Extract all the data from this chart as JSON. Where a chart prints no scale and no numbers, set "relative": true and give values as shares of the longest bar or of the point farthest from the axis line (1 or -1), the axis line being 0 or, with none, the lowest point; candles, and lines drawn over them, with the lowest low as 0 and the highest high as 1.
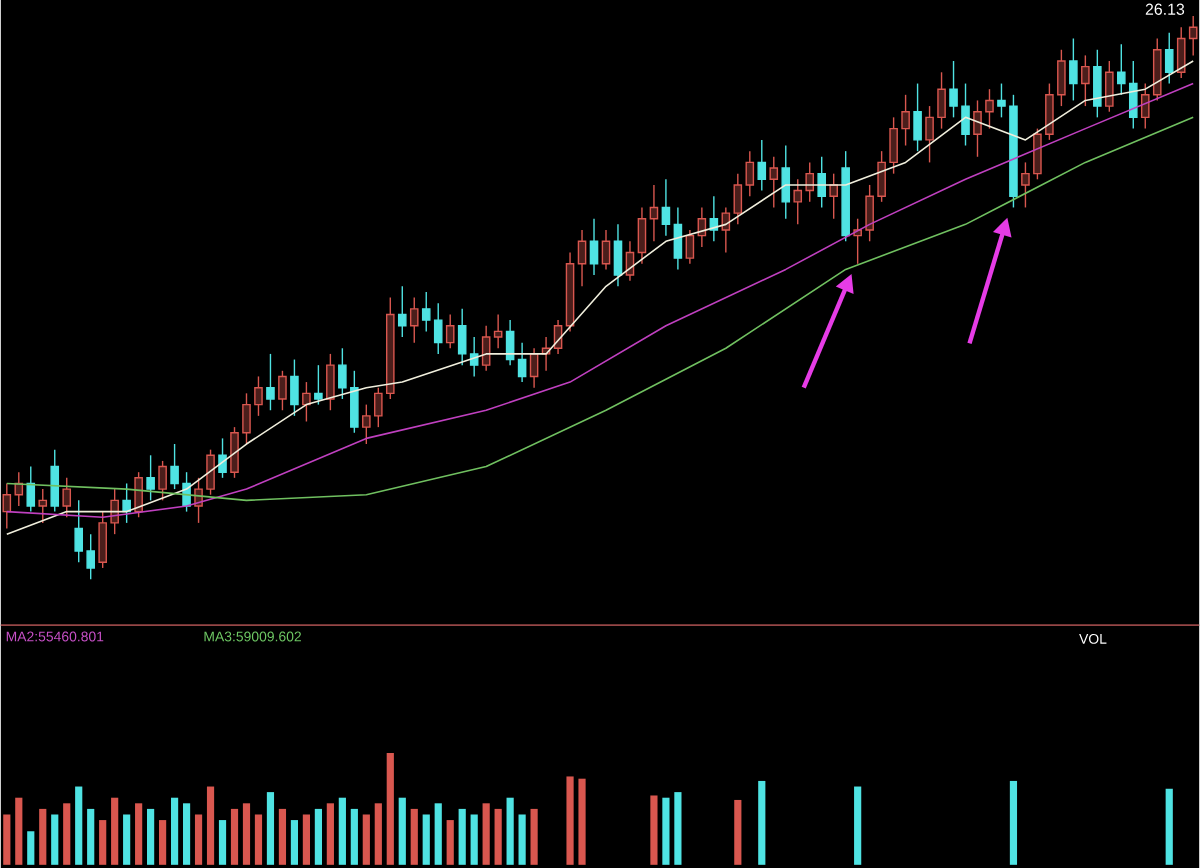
{
  "chart_data": [
    {
      "type": "candlestick",
      "relative": true,
      "categories": [
        null,
        null,
        null,
        null,
        null,
        null,
        null,
        null,
        null,
        null,
        null,
        null,
        null,
        null,
        null,
        null,
        null,
        null,
        null,
        null,
        null,
        null,
        null,
        null,
        null,
        null,
        null,
        null,
        null,
        null,
        null,
        null,
        null,
        null,
        null,
        null,
        null,
        null,
        null,
        null,
        null,
        null,
        null,
        null,
        null,
        null,
        null,
        null,
        null,
        null,
        null,
        null,
        null,
        null,
        null,
        null,
        null,
        null,
        null,
        null,
        null,
        null,
        null,
        null,
        null,
        null,
        null,
        null,
        null,
        null,
        null,
        null,
        null,
        null,
        null,
        null,
        null,
        null,
        null,
        null,
        null,
        null,
        null,
        null,
        null,
        null,
        null,
        null,
        null,
        null,
        null,
        null,
        null,
        null,
        null,
        null,
        null,
        null,
        null,
        null
      ],
      "ohlc": [
        [
          0.12,
          0.17,
          0.09,
          0.15
        ],
        [
          0.15,
          0.19,
          0.13,
          0.17
        ],
        [
          0.17,
          0.2,
          0.12,
          0.13
        ],
        [
          0.13,
          0.16,
          0.1,
          0.14
        ],
        [
          0.2,
          0.23,
          0.12,
          0.13
        ],
        [
          0.13,
          0.18,
          0.11,
          0.16
        ],
        [
          0.09,
          0.14,
          0.03,
          0.05
        ],
        [
          0.05,
          0.08,
          0.0,
          0.02
        ],
        [
          0.03,
          0.12,
          0.02,
          0.1
        ],
        [
          0.1,
          0.16,
          0.08,
          0.14
        ],
        [
          0.14,
          0.17,
          0.1,
          0.12
        ],
        [
          0.12,
          0.19,
          0.11,
          0.18
        ],
        [
          0.18,
          0.22,
          0.14,
          0.16
        ],
        [
          0.16,
          0.21,
          0.14,
          0.2
        ],
        [
          0.2,
          0.24,
          0.16,
          0.17
        ],
        [
          0.17,
          0.19,
          0.12,
          0.13
        ],
        [
          0.13,
          0.18,
          0.1,
          0.16
        ],
        [
          0.16,
          0.23,
          0.15,
          0.22
        ],
        [
          0.22,
          0.25,
          0.18,
          0.19
        ],
        [
          0.19,
          0.27,
          0.18,
          0.26
        ],
        [
          0.26,
          0.33,
          0.24,
          0.31
        ],
        [
          0.31,
          0.36,
          0.29,
          0.34
        ],
        [
          0.34,
          0.4,
          0.3,
          0.32
        ],
        [
          0.32,
          0.37,
          0.3,
          0.36
        ],
        [
          0.36,
          0.39,
          0.29,
          0.31
        ],
        [
          0.31,
          0.35,
          0.28,
          0.33
        ],
        [
          0.33,
          0.38,
          0.31,
          0.32
        ],
        [
          0.32,
          0.4,
          0.3,
          0.38
        ],
        [
          0.38,
          0.41,
          0.32,
          0.34
        ],
        [
          0.34,
          0.37,
          0.26,
          0.27
        ],
        [
          0.27,
          0.31,
          0.24,
          0.29
        ],
        [
          0.29,
          0.34,
          0.27,
          0.33
        ],
        [
          0.33,
          0.5,
          0.32,
          0.47
        ],
        [
          0.47,
          0.52,
          0.43,
          0.45
        ],
        [
          0.45,
          0.5,
          0.42,
          0.48
        ],
        [
          0.48,
          0.51,
          0.44,
          0.46
        ],
        [
          0.46,
          0.49,
          0.4,
          0.42
        ],
        [
          0.42,
          0.47,
          0.41,
          0.45
        ],
        [
          0.45,
          0.48,
          0.38,
          0.4
        ],
        [
          0.4,
          0.43,
          0.36,
          0.38
        ],
        [
          0.38,
          0.45,
          0.37,
          0.43
        ],
        [
          0.43,
          0.47,
          0.41,
          0.44
        ],
        [
          0.44,
          0.46,
          0.38,
          0.39
        ],
        [
          0.39,
          0.42,
          0.35,
          0.36
        ],
        [
          0.36,
          0.41,
          0.34,
          0.4
        ],
        [
          0.4,
          0.43,
          0.37,
          0.41
        ],
        [
          0.41,
          0.46,
          0.4,
          0.45
        ],
        [
          0.45,
          0.58,
          0.44,
          0.56
        ],
        [
          0.56,
          0.62,
          0.52,
          0.6
        ],
        [
          0.6,
          0.64,
          0.54,
          0.56
        ],
        [
          0.56,
          0.62,
          0.55,
          0.6
        ],
        [
          0.6,
          0.63,
          0.52,
          0.54
        ],
        [
          0.54,
          0.6,
          0.53,
          0.58
        ],
        [
          0.58,
          0.66,
          0.56,
          0.64
        ],
        [
          0.64,
          0.7,
          0.6,
          0.66
        ],
        [
          0.66,
          0.71,
          0.61,
          0.63
        ],
        [
          0.63,
          0.66,
          0.55,
          0.57
        ],
        [
          0.57,
          0.62,
          0.56,
          0.61
        ],
        [
          0.61,
          0.66,
          0.59,
          0.64
        ],
        [
          0.64,
          0.68,
          0.6,
          0.62
        ],
        [
          0.62,
          0.66,
          0.58,
          0.65
        ],
        [
          0.65,
          0.72,
          0.63,
          0.7
        ],
        [
          0.7,
          0.76,
          0.68,
          0.74
        ],
        [
          0.74,
          0.78,
          0.69,
          0.71
        ],
        [
          0.71,
          0.75,
          0.66,
          0.73
        ],
        [
          0.73,
          0.77,
          0.64,
          0.67
        ],
        [
          0.67,
          0.71,
          0.63,
          0.69
        ],
        [
          0.69,
          0.74,
          0.67,
          0.72
        ],
        [
          0.72,
          0.75,
          0.66,
          0.68
        ],
        [
          0.68,
          0.72,
          0.64,
          0.7
        ],
        [
          0.73,
          0.76,
          0.6,
          0.61
        ],
        [
          0.61,
          0.64,
          0.56,
          0.62
        ],
        [
          0.62,
          0.7,
          0.6,
          0.68
        ],
        [
          0.68,
          0.76,
          0.67,
          0.74
        ],
        [
          0.74,
          0.82,
          0.72,
          0.8
        ],
        [
          0.8,
          0.86,
          0.77,
          0.83
        ],
        [
          0.83,
          0.88,
          0.76,
          0.78
        ],
        [
          0.78,
          0.84,
          0.74,
          0.82
        ],
        [
          0.82,
          0.9,
          0.8,
          0.87
        ],
        [
          0.87,
          0.92,
          0.82,
          0.84
        ],
        [
          0.84,
          0.88,
          0.77,
          0.79
        ],
        [
          0.79,
          0.85,
          0.75,
          0.83
        ],
        [
          0.83,
          0.87,
          0.8,
          0.85
        ],
        [
          0.85,
          0.88,
          0.82,
          0.84
        ],
        [
          0.84,
          0.86,
          0.66,
          0.68
        ],
        [
          0.7,
          0.74,
          0.66,
          0.72
        ],
        [
          0.72,
          0.8,
          0.71,
          0.79
        ],
        [
          0.79,
          0.88,
          0.78,
          0.86
        ],
        [
          0.86,
          0.94,
          0.84,
          0.92
        ],
        [
          0.92,
          0.96,
          0.85,
          0.88
        ],
        [
          0.88,
          0.93,
          0.84,
          0.91
        ],
        [
          0.91,
          0.94,
          0.82,
          0.84
        ],
        [
          0.84,
          0.92,
          0.83,
          0.9
        ],
        [
          0.9,
          0.95,
          0.86,
          0.88
        ],
        [
          0.88,
          0.92,
          0.8,
          0.82
        ],
        [
          0.82,
          0.88,
          0.8,
          0.86
        ],
        [
          0.86,
          0.96,
          0.85,
          0.94
        ],
        [
          0.94,
          0.97,
          0.88,
          0.9
        ],
        [
          0.9,
          0.98,
          0.89,
          0.96
        ],
        [
          0.96,
          1.0,
          0.93,
          0.98
        ]
      ],
      "colors": [
        "#d9574f",
        "#d9574f",
        "#4fe3e3",
        "#d9574f",
        "#4fe3e3",
        "#d9574f",
        "#4fe3e3",
        "#4fe3e3",
        "#d9574f",
        "#d9574f",
        "#4fe3e3",
        "#d9574f",
        "#4fe3e3",
        "#d9574f",
        "#4fe3e3",
        "#4fe3e3",
        "#d9574f",
        "#d9574f",
        "#4fe3e3",
        "#d9574f",
        "#d9574f",
        "#d9574f",
        "#4fe3e3",
        "#d9574f",
        "#4fe3e3",
        "#d9574f",
        "#4fe3e3",
        "#d9574f",
        "#4fe3e3",
        "#4fe3e3",
        "#d9574f",
        "#d9574f",
        "#d9574f",
        "#4fe3e3",
        "#d9574f",
        "#4fe3e3",
        "#4fe3e3",
        "#d9574f",
        "#4fe3e3",
        "#4fe3e3",
        "#d9574f",
        "#d9574f",
        "#4fe3e3",
        "#4fe3e3",
        "#d9574f",
        "#d9574f",
        "#d9574f",
        "#d9574f",
        "#d9574f",
        "#4fe3e3",
        "#d9574f",
        "#4fe3e3",
        "#d9574f",
        "#d9574f",
        "#d9574f",
        "#4fe3e3",
        "#4fe3e3",
        "#d9574f",
        "#d9574f",
        "#4fe3e3",
        "#d9574f",
        "#d9574f",
        "#d9574f",
        "#4fe3e3",
        "#d9574f",
        "#4fe3e3",
        "#d9574f",
        "#d9574f",
        "#4fe3e3",
        "#d9574f",
        "#4fe3e3",
        "#d9574f",
        "#d9574f",
        "#d9574f",
        "#d9574f",
        "#d9574f",
        "#4fe3e3",
        "#d9574f",
        "#d9574f",
        "#4fe3e3",
        "#4fe3e3",
        "#d9574f",
        "#d9574f",
        "#4fe3e3",
        "#4fe3e3",
        "#d9574f",
        "#d9574f",
        "#d9574f",
        "#d9574f",
        "#4fe3e3",
        "#d9574f",
        "#4fe3e3",
        "#d9574f",
        "#4fe3e3",
        "#4fe3e3",
        "#d9574f",
        "#d9574f",
        "#4fe3e3",
        "#d9574f",
        "#d9574f"
      ],
      "series": [
        {
          "type": "line",
          "color": "#f0eedc",
          "values": [
            0.08,
            null,
            null,
            null,
            null,
            0.12,
            null,
            null,
            null,
            null,
            0.12,
            null,
            null,
            null,
            null,
            0.16,
            null,
            null,
            null,
            null,
            0.24,
            null,
            null,
            null,
            null,
            0.31,
            null,
            null,
            null,
            null,
            0.34,
            null,
            null,
            0.35,
            null,
            null,
            null,
            null,
            null,
            null,
            0.4,
            null,
            null,
            null,
            null,
            0.4,
            null,
            null,
            null,
            null,
            0.52,
            null,
            null,
            null,
            null,
            0.6,
            null,
            null,
            null,
            null,
            0.63,
            null,
            null,
            null,
            null,
            0.7,
            null,
            null,
            null,
            null,
            0.7,
            null,
            null,
            null,
            null,
            0.74,
            null,
            null,
            null,
            null,
            0.82,
            null,
            null,
            null,
            null,
            0.78,
            null,
            null,
            null,
            null,
            0.85,
            null,
            null,
            null,
            null,
            0.87,
            null,
            null,
            null,
            0.92
          ]
        },
        {
          "type": "line",
          "color": "#c040c0",
          "values": [
            0.12,
            null,
            null,
            null,
            null,
            null,
            null,
            null,
            0.11,
            null,
            null,
            null,
            null,
            null,
            null,
            0.13,
            null,
            null,
            null,
            null,
            0.16,
            null,
            null,
            null,
            null,
            null,
            null,
            null,
            null,
            null,
            0.25,
            null,
            null,
            null,
            null,
            null,
            null,
            null,
            null,
            null,
            0.3,
            null,
            null,
            null,
            null,
            null,
            null,
            0.35,
            null,
            null,
            null,
            null,
            null,
            null,
            null,
            0.45,
            null,
            null,
            null,
            null,
            null,
            null,
            null,
            null,
            null,
            0.55,
            null,
            null,
            null,
            null,
            null,
            null,
            0.63,
            null,
            null,
            null,
            null,
            null,
            null,
            null,
            0.71,
            null,
            null,
            null,
            null,
            null,
            null,
            null,
            null,
            null,
            0.8,
            null,
            null,
            null,
            null,
            null,
            null,
            null,
            null,
            0.88
          ]
        },
        {
          "type": "line",
          "color": "#70c060",
          "values": [
            0.17,
            null,
            null,
            null,
            null,
            null,
            null,
            null,
            null,
            null,
            0.16,
            null,
            null,
            null,
            null,
            null,
            null,
            null,
            null,
            null,
            0.14,
            null,
            null,
            null,
            null,
            null,
            null,
            null,
            null,
            null,
            0.15,
            null,
            null,
            null,
            null,
            null,
            null,
            null,
            null,
            null,
            0.2,
            null,
            null,
            null,
            null,
            null,
            null,
            null,
            null,
            null,
            0.3,
            null,
            null,
            null,
            null,
            null,
            null,
            null,
            null,
            null,
            0.41,
            null,
            null,
            null,
            null,
            null,
            null,
            null,
            null,
            null,
            0.55,
            null,
            null,
            null,
            null,
            null,
            null,
            null,
            null,
            null,
            0.63,
            null,
            null,
            null,
            null,
            null,
            null,
            null,
            null,
            null,
            0.74,
            null,
            null,
            null,
            null,
            null,
            null,
            null,
            null,
            0.82
          ]
        }
      ],
      "annotations": [
        "26.13"
      ]
    },
    {
      "type": "bar",
      "relative": true,
      "categories": [
        null,
        null,
        null,
        null,
        null,
        null,
        null,
        null,
        null,
        null,
        null,
        null,
        null,
        null,
        null,
        null,
        null,
        null,
        null,
        null,
        null,
        null,
        null,
        null,
        null,
        null,
        null,
        null,
        null,
        null,
        null,
        null,
        null,
        null,
        null,
        null,
        null,
        null,
        null,
        null,
        null,
        null,
        null,
        null,
        null,
        null,
        null,
        null,
        null,
        null,
        null,
        null,
        null,
        null,
        null,
        null,
        null,
        null,
        null,
        null,
        null,
        null,
        null,
        null,
        null,
        null,
        null,
        null,
        null,
        null,
        null,
        null,
        null,
        null,
        null,
        null,
        null,
        null,
        null,
        null,
        null,
        null,
        null,
        null,
        null,
        null,
        null,
        null,
        null,
        null,
        null,
        null,
        null,
        null,
        null,
        null,
        null,
        null,
        null,
        null
      ],
      "values": [
        0.45,
        0.6,
        0.3,
        0.5,
        0.45,
        0.55,
        0.7,
        0.5,
        0.4,
        0.6,
        0.45,
        0.55,
        0.5,
        0.4,
        0.6,
        0.55,
        0.45,
        0.7,
        0.4,
        0.5,
        0.55,
        0.45,
        0.65,
        0.5,
        0.4,
        0.45,
        0.5,
        0.55,
        0.6,
        0.5,
        0.45,
        0.55,
        1,
        0.6,
        0.5,
        0.45,
        0.55,
        0.4,
        0.5,
        0.45,
        0.55,
        0.5,
        0.6,
        0.45,
        0.5,
        null,
        null,
        0.79,
        0.77,
        null,
        null,
        null,
        null,
        null,
        0.62,
        0.6,
        0.65,
        null,
        null,
        null,
        null,
        0.58,
        null,
        0.75,
        null,
        null,
        null,
        null,
        null,
        null,
        null,
        0.7,
        null,
        null,
        null,
        null,
        null,
        null,
        null,
        null,
        null,
        null,
        null,
        null,
        0.75,
        null,
        null,
        null,
        null,
        null,
        null,
        null,
        null,
        null,
        null,
        null,
        null,
        0.68,
        null,
        null
      ],
      "colors": [
        "#d9574f",
        "#d9574f",
        "#4fe3e3",
        "#d9574f",
        "#4fe3e3",
        "#d9574f",
        "#4fe3e3",
        "#4fe3e3",
        "#d9574f",
        "#d9574f",
        "#4fe3e3",
        "#d9574f",
        "#4fe3e3",
        "#d9574f",
        "#4fe3e3",
        "#4fe3e3",
        "#d9574f",
        "#d9574f",
        "#4fe3e3",
        "#d9574f",
        "#d9574f",
        "#d9574f",
        "#4fe3e3",
        "#d9574f",
        "#4fe3e3",
        "#d9574f",
        "#4fe3e3",
        "#d9574f",
        "#4fe3e3",
        "#4fe3e3",
        "#d9574f",
        "#d9574f",
        "#d9574f",
        "#4fe3e3",
        "#d9574f",
        "#4fe3e3",
        "#4fe3e3",
        "#d9574f",
        "#4fe3e3",
        "#4fe3e3",
        "#d9574f",
        "#d9574f",
        "#4fe3e3",
        "#4fe3e3",
        "#d9574f",
        "#d9574f",
        "#d9574f",
        "#d9574f",
        "#d9574f",
        "#4fe3e3",
        "#d9574f",
        "#4fe3e3",
        "#d9574f",
        "#d9574f",
        "#d9574f",
        "#4fe3e3",
        "#4fe3e3",
        "#d9574f",
        "#d9574f",
        "#4fe3e3",
        "#d9574f",
        "#d9574f",
        "#d9574f",
        "#4fe3e3",
        "#d9574f",
        "#4fe3e3",
        "#d9574f",
        "#d9574f",
        "#4fe3e3",
        "#d9574f",
        "#4fe3e3",
        "#4fe3e3",
        "#d9574f",
        "#d9574f",
        "#d9574f",
        "#d9574f",
        "#4fe3e3",
        "#d9574f",
        "#d9574f",
        "#4fe3e3",
        "#4fe3e3",
        "#d9574f",
        "#d9574f",
        "#4fe3e3",
        "#4fe3e3",
        "#d9574f",
        "#d9574f",
        "#d9574f",
        "#d9574f",
        "#4fe3e3",
        "#d9574f",
        "#4fe3e3",
        "#d9574f",
        "#4fe3e3",
        "#4fe3e3",
        "#d9574f",
        "#d9574f",
        "#4fe3e3",
        "#d9574f",
        "#d9574f"
      ],
      "annotations": [
        "MA2:55460.801",
        "MA3:59009.602",
        "VOL"
      ]
    }
  ]
}
